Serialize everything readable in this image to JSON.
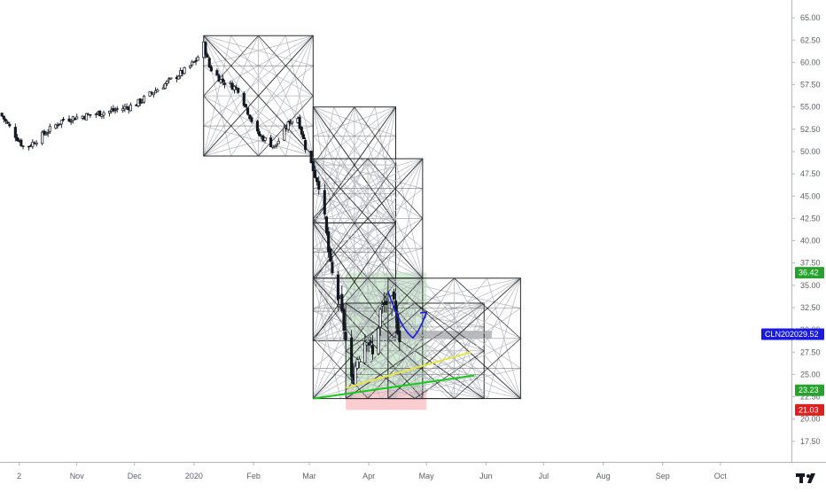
{
  "chart_data": {
    "type": "candlestick",
    "price_axis": {
      "ticks": [
        "65.00",
        "62.50",
        "60.00",
        "57.50",
        "55.00",
        "52.50",
        "50.00",
        "47.50",
        "45.00",
        "42.50",
        "40.00",
        "37.50",
        "35.00",
        "32.50",
        "30.00",
        "27.50",
        "25.00",
        "22.50",
        "20.00",
        "17.50"
      ],
      "tick_values": [
        65,
        62.5,
        60,
        57.5,
        55,
        52.5,
        50,
        47.5,
        45,
        42.5,
        40,
        37.5,
        35,
        32.5,
        30,
        27.5,
        25,
        22.5,
        20,
        17.5
      ],
      "range": [
        15.2,
        67.0
      ]
    },
    "time_axis": {
      "ticks": [
        "2",
        "Nov",
        "Dec",
        "2020",
        "Feb",
        "Mar",
        "Apr",
        "May",
        "Jun",
        "Jul",
        "Aug",
        "Sep",
        "Oct"
      ],
      "tick_dates": [
        "2019-10-02",
        "2019-11-01",
        "2019-12-01",
        "2020-01-01",
        "2020-02-01",
        "2020-03-01",
        "2020-04-01",
        "2020-05-01",
        "2020-06-01",
        "2020-07-01",
        "2020-08-01",
        "2020-09-01",
        "2020-10-01"
      ],
      "range": [
        "2019-09-22",
        "2020-11-07"
      ]
    },
    "badges": [
      {
        "label": "36.42",
        "value": 36.42,
        "color": "#26a32c"
      },
      {
        "label": "29.52",
        "value": 29.52,
        "color": "#1a1adf",
        "symbol": "CLN2020"
      },
      {
        "label": "23.23",
        "value": 23.23,
        "color": "#26a32c"
      },
      {
        "label": "21.03",
        "value": 21.03,
        "color": "#e01e1e"
      }
    ],
    "price_waypoints": [
      {
        "date": "2019-09-22",
        "close": 54.3
      },
      {
        "date": "2019-10-02",
        "close": 51.2
      },
      {
        "date": "2019-10-05",
        "close": 50.3
      },
      {
        "date": "2019-10-15",
        "close": 52.0
      },
      {
        "date": "2019-10-25",
        "close": 53.6
      },
      {
        "date": "2019-11-05",
        "close": 54.0
      },
      {
        "date": "2019-11-20",
        "close": 54.6
      },
      {
        "date": "2019-12-01",
        "close": 55.2
      },
      {
        "date": "2019-12-15",
        "close": 57.3
      },
      {
        "date": "2019-12-28",
        "close": 59.2
      },
      {
        "date": "2020-01-02",
        "close": 60.2
      },
      {
        "date": "2020-01-06",
        "close": 62.0
      },
      {
        "date": "2020-01-09",
        "close": 59.5
      },
      {
        "date": "2020-01-15",
        "close": 58.0
      },
      {
        "date": "2020-01-24",
        "close": 57.0
      },
      {
        "date": "2020-02-03",
        "close": 52.0
      },
      {
        "date": "2020-02-12",
        "close": 50.5
      },
      {
        "date": "2020-02-20",
        "close": 53.4
      },
      {
        "date": "2020-02-24",
        "close": 53.8
      },
      {
        "date": "2020-02-28",
        "close": 50.5
      },
      {
        "date": "2020-03-03",
        "close": 48.0
      },
      {
        "date": "2020-03-06",
        "close": 46.5
      },
      {
        "date": "2020-03-09",
        "close": 42.3
      },
      {
        "date": "2020-03-12",
        "close": 37.0
      },
      {
        "date": "2020-03-16",
        "close": 33.6
      },
      {
        "date": "2020-03-19",
        "close": 30.3
      },
      {
        "date": "2020-03-23",
        "close": 24.0
      },
      {
        "date": "2020-03-26",
        "close": 27.0
      },
      {
        "date": "2020-03-31",
        "close": 29.5
      },
      {
        "date": "2020-04-03",
        "close": 27.0
      },
      {
        "date": "2020-04-07",
        "close": 32.0
      },
      {
        "date": "2020-04-11",
        "close": 33.4
      },
      {
        "date": "2020-04-14",
        "close": 32.4
      },
      {
        "date": "2020-04-17",
        "close": 29.52
      }
    ],
    "drawings": {
      "gann_boxes": [
        {
          "start": "2020-01-06",
          "end": "2020-03-03",
          "top": 63.0,
          "bottom": 49.5
        },
        {
          "start": "2020-03-03",
          "end": "2020-04-15",
          "top": 55.0,
          "bottom": 42.0
        },
        {
          "start": "2020-03-03",
          "end": "2020-04-29",
          "top": 49.2,
          "bottom": 35.8
        },
        {
          "start": "2020-03-03",
          "end": "2020-04-15",
          "top": 42.0,
          "bottom": 28.8
        },
        {
          "start": "2020-03-03",
          "end": "2020-04-29",
          "top": 35.8,
          "bottom": 22.3
        },
        {
          "start": "2020-03-20",
          "end": "2020-05-31",
          "top": 33.0,
          "bottom": 22.3
        },
        {
          "start": "2020-04-11",
          "end": "2020-06-19",
          "top": 35.8,
          "bottom": 22.3
        }
      ],
      "long_position": {
        "start": "2020-03-20",
        "end": "2020-05-01",
        "entry": 23.23,
        "target": 36.42,
        "stop": 21.03
      },
      "green_line": {
        "from": [
          "2020-03-03",
          22.3
        ],
        "to": [
          "2020-05-26",
          24.9
        ]
      },
      "yellow_line": {
        "from": [
          "2020-03-20",
          23.5
        ],
        "to": [
          "2020-05-24",
          27.5
        ]
      },
      "gray_zone": {
        "start": "2020-04-05",
        "end": "2020-06-04",
        "top": 29.9,
        "bottom": 29.0
      },
      "blue_path": [
        [
          "2020-04-11",
          34.3
        ],
        [
          "2020-04-18",
          30.5
        ],
        [
          "2020-04-24",
          29.1
        ],
        [
          "2020-04-28",
          30.6
        ],
        [
          "2020-05-01",
          32.0
        ]
      ]
    }
  },
  "colors": {
    "candle": "#131722",
    "grid_box": "#2a2a2a",
    "grid_thin": "#b2b5be",
    "long_profit": "#4caf5040",
    "long_loss": "#f2364540",
    "blue": "#1a1adf",
    "green": "#17c917",
    "yellow": "#e4e34a",
    "gray_zone": "#9e9e9e",
    "axis_text": "#5d606b",
    "axis_line": "#b2b5be"
  },
  "logo": {
    "name": "tradingview-logo-icon"
  }
}
